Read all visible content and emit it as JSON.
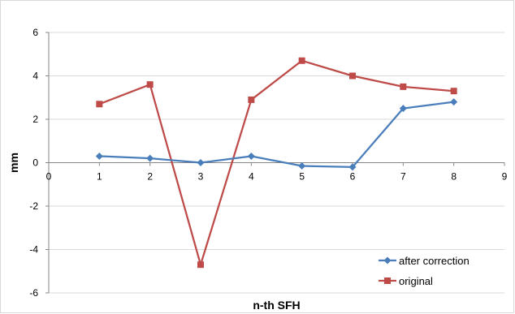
{
  "chart_data": {
    "type": "line",
    "xlabel": "n-th SFH",
    "ylabel": "mm",
    "xlim": [
      0,
      9
    ],
    "ylim": [
      -6,
      6
    ],
    "x_ticks": [
      "0",
      "1",
      "2",
      "3",
      "4",
      "5",
      "6",
      "7",
      "8",
      "9"
    ],
    "y_ticks": [
      "-6",
      "-4",
      "-2",
      "0",
      "2",
      "4",
      "6"
    ],
    "grid": "horizontal",
    "legend_position": "bottom-right",
    "x": [
      1,
      2,
      3,
      4,
      5,
      6,
      7,
      8
    ],
    "series": [
      {
        "name": "after correction",
        "color": "#4a7ebb",
        "marker": "diamond",
        "values": [
          0.3,
          0.2,
          0.0,
          0.3,
          -0.15,
          -0.2,
          2.5,
          2.8
        ]
      },
      {
        "name": "original",
        "color": "#be4b48",
        "marker": "square",
        "values": [
          2.7,
          3.6,
          -4.7,
          2.9,
          4.7,
          4.0,
          3.5,
          3.3
        ]
      }
    ]
  }
}
